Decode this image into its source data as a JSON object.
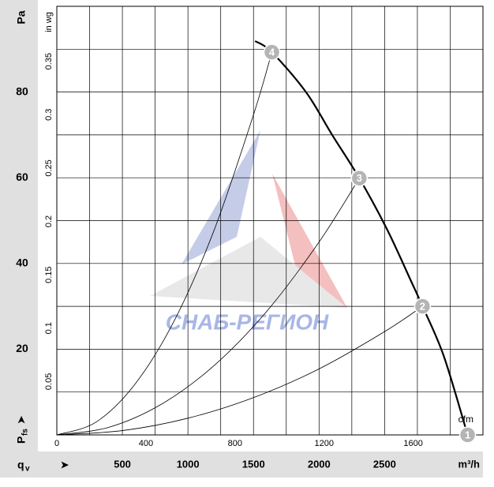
{
  "chart_data": {
    "type": "line",
    "y_label": "Pa",
    "y2_label": "in wg",
    "x2_label": "cfm",
    "x_label": "m³/h",
    "x_symbol": "q",
    "x_symbol_sub": "v",
    "y_symbol": "P",
    "y_symbol_sub": "fs",
    "watermark": "СНАБ-РЕГИОН",
    "xlim": [
      0,
      3250
    ],
    "xticks": [
      500,
      1000,
      1500,
      2000,
      2500
    ],
    "x_gridlines": [
      250,
      500,
      750,
      1000,
      1250,
      1500,
      1750,
      2000,
      2250,
      2500,
      2750,
      3000
    ],
    "x2lim": [
      0,
      1913
    ],
    "x2ticks": [
      0,
      400,
      800,
      1200,
      1600
    ],
    "ylim": [
      0,
      100
    ],
    "yticks": [
      20,
      40,
      60,
      80
    ],
    "y_gridlines": [
      10,
      20,
      30,
      40,
      50,
      60,
      70,
      80,
      90
    ],
    "y2lim": [
      0,
      0.4015
    ],
    "y2ticks": [
      0.05,
      0.1,
      0.15,
      0.2,
      0.25,
      0.3,
      0.35
    ],
    "series": [
      {
        "color": "#000000",
        "width": 2.2,
        "x": [
          1512,
          1640,
          1900,
          2100,
          2307,
          2518,
          2700,
          2789,
          2950,
          3133
        ],
        "values": [
          91.9,
          89.3,
          80,
          70,
          59.9,
          48,
          36,
          30,
          18.5,
          0
        ]
      },
      {
        "color": "#000000",
        "width": 0.8,
        "x": [
          0,
          300,
          600,
          900,
          1200,
          1500,
          1640
        ],
        "values": [
          0,
          3.0,
          12.0,
          26.9,
          47.8,
          74.7,
          89.3
        ]
      },
      {
        "color": "#000000",
        "width": 0.8,
        "x": [
          0,
          400,
          800,
          1200,
          1600,
          2000,
          2307
        ],
        "values": [
          0,
          1.8,
          7.2,
          16.2,
          28.8,
          45.0,
          59.9
        ]
      },
      {
        "color": "#000000",
        "width": 0.8,
        "x": [
          0,
          500,
          1000,
          1500,
          2000,
          2500,
          2789
        ],
        "values": [
          0,
          1.0,
          3.9,
          8.7,
          15.4,
          24.1,
          30.0
        ]
      }
    ],
    "markers": [
      {
        "label": "1",
        "x": 3133,
        "y": 0
      },
      {
        "label": "2",
        "x": 2789,
        "y": 30.0
      },
      {
        "label": "3",
        "x": 2307,
        "y": 59.9
      },
      {
        "label": "4",
        "x": 1640,
        "y": 89.3
      }
    ]
  }
}
